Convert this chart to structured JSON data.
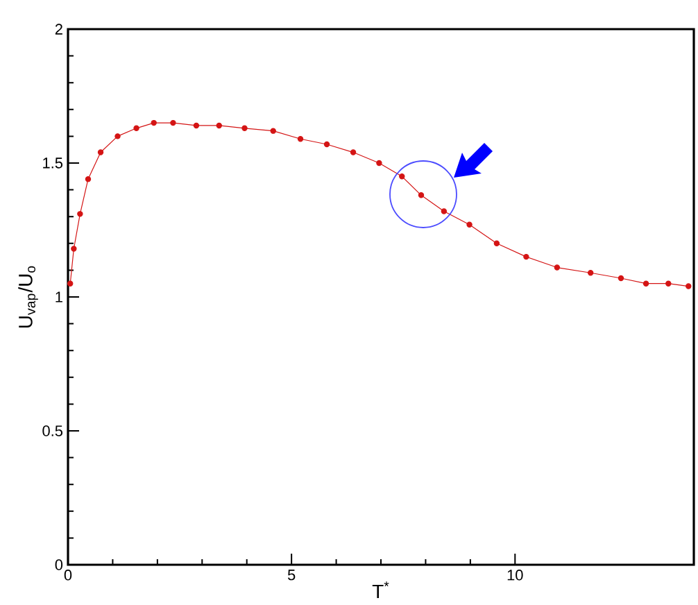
{
  "chart_data": {
    "type": "line",
    "xlabel": "T$^{*}$",
    "ylabel": "U$_{vap}$/U$_{o}$",
    "xlim": [
      0,
      14
    ],
    "ylim": [
      0,
      2
    ],
    "xticks": [
      0,
      5,
      10
    ],
    "yticks": [
      0,
      0.5,
      1,
      1.5,
      2
    ],
    "marker": "circle",
    "line_style": "solid",
    "x": [
      0.05,
      0.13,
      0.27,
      0.45,
      0.73,
      1.11,
      1.53,
      1.92,
      2.35,
      2.87,
      3.38,
      3.95,
      4.59,
      5.2,
      5.79,
      6.38,
      6.96,
      7.47,
      7.9,
      8.41,
      8.98,
      9.59,
      10.25,
      10.94,
      11.69,
      12.37,
      12.93,
      13.43,
      13.88
    ],
    "series": [
      {
        "color": "#d41414",
        "values": [
          1.05,
          1.18,
          1.31,
          1.44,
          1.54,
          1.6,
          1.63,
          1.65,
          1.65,
          1.64,
          1.64,
          1.63,
          1.62,
          1.59,
          1.57,
          1.54,
          1.5,
          1.45,
          1.38,
          1.32,
          1.27,
          1.2,
          1.15,
          1.11,
          1.09,
          1.07,
          1.05,
          1.05,
          1.04
        ]
      }
    ]
  }
}
